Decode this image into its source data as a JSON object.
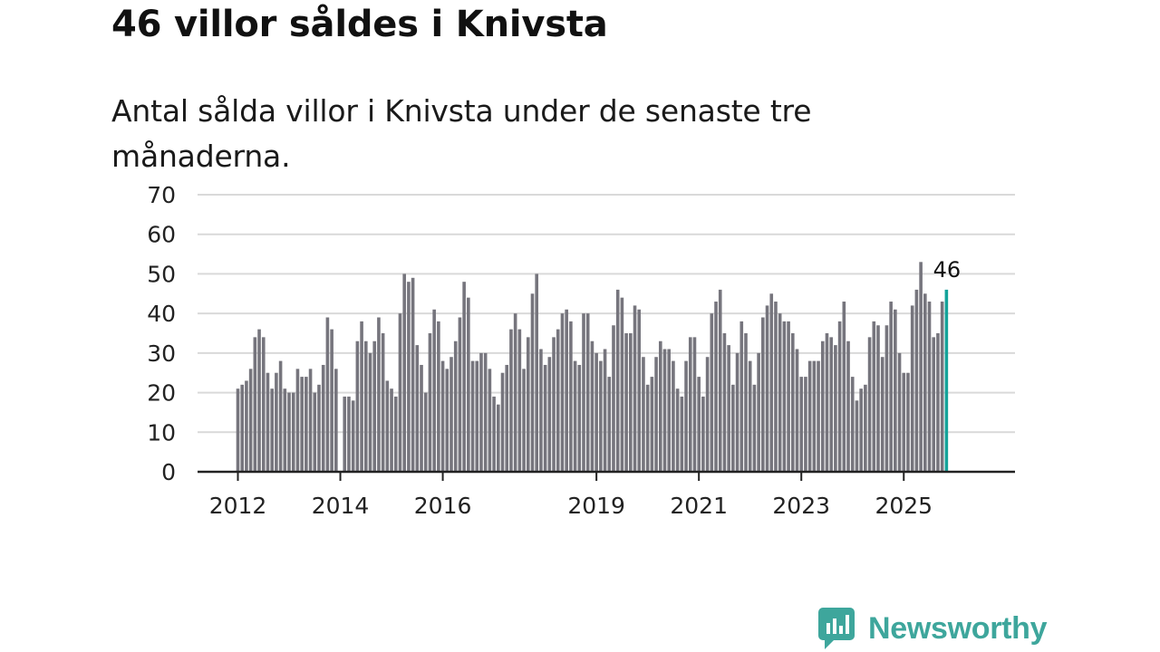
{
  "title": "46 villor såldes i Knivsta",
  "subtitle": "Antal sålda villor i Knivsta under de senaste tre månaderna.",
  "brand": {
    "name": "Newsworthy",
    "icon": "newsworthy-logo-icon"
  },
  "colors": {
    "bar": "#76757d",
    "highlight": "#14a39a",
    "grid": "#d9d9d9",
    "axis": "#222222",
    "brand": "#3ea69c"
  },
  "chart_data": {
    "type": "bar",
    "title": "",
    "xlabel": "",
    "ylabel": "",
    "ylim": [
      0,
      70
    ],
    "yticks": [
      0,
      10,
      20,
      30,
      40,
      50,
      60,
      70
    ],
    "x_start": "2012-01",
    "xticks": [
      "2012",
      "2014",
      "2016",
      "2019",
      "2021",
      "2023",
      "2025"
    ],
    "grid": true,
    "highlight_label": "46",
    "values": [
      21,
      22,
      23,
      26,
      34,
      36,
      34,
      25,
      21,
      25,
      28,
      21,
      20,
      20,
      26,
      24,
      24,
      26,
      20,
      22,
      27,
      39,
      36,
      26,
      null,
      19,
      19,
      18,
      33,
      38,
      33,
      30,
      33,
      39,
      35,
      23,
      21,
      19,
      40,
      50,
      48,
      49,
      32,
      27,
      20,
      35,
      41,
      38,
      28,
      26,
      29,
      33,
      39,
      48,
      44,
      28,
      28,
      30,
      30,
      26,
      19,
      17,
      25,
      27,
      36,
      40,
      36,
      26,
      34,
      45,
      50,
      31,
      27,
      29,
      34,
      36,
      40,
      41,
      38,
      28,
      27,
      40,
      40,
      33,
      30,
      28,
      31,
      24,
      37,
      46,
      44,
      35,
      35,
      42,
      41,
      29,
      22,
      24,
      29,
      33,
      31,
      31,
      28,
      21,
      19,
      28,
      34,
      34,
      24,
      19,
      29,
      40,
      43,
      46,
      35,
      32,
      22,
      30,
      38,
      35,
      28,
      22,
      30,
      39,
      42,
      45,
      43,
      40,
      38,
      38,
      35,
      31,
      24,
      24,
      28,
      28,
      28,
      33,
      35,
      34,
      32,
      38,
      43,
      33,
      24,
      18,
      21,
      22,
      34,
      38,
      37,
      29,
      37,
      43,
      41,
      30,
      25,
      25,
      42,
      46,
      53,
      45,
      43,
      34,
      35,
      43,
      46
    ]
  }
}
